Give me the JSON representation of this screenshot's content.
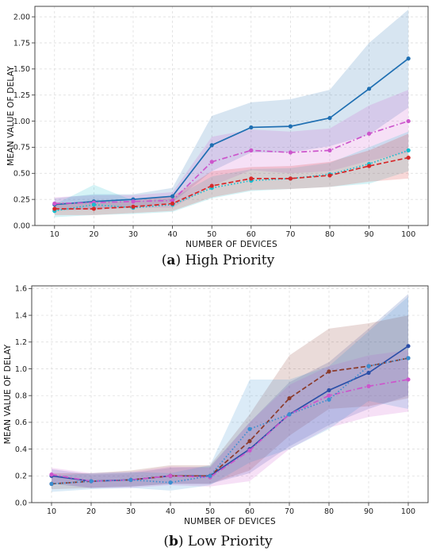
{
  "chart_data": [
    {
      "type": "line",
      "caption_letter": "a",
      "caption_text": "High Priority",
      "xlabel": "NUMBER OF DEVICES",
      "ylabel": "MEAN VALUE OF DELAY",
      "x": [
        10,
        20,
        30,
        40,
        50,
        60,
        70,
        80,
        90,
        100
      ],
      "xlim": [
        5,
        105
      ],
      "ylim": [
        0,
        2.1
      ],
      "yticks": [
        0.0,
        0.25,
        0.5,
        0.75,
        1.0,
        1.25,
        1.5,
        1.75,
        2.0
      ],
      "ytick_labels": [
        "0.00",
        "0.25",
        "0.50",
        "0.75",
        "1.00",
        "1.25",
        "1.50",
        "1.75",
        "2.00"
      ],
      "grid": true,
      "series": [
        {
          "color": "#1f6fb2",
          "dash": "solid",
          "marker": "circle",
          "values": [
            0.2,
            0.23,
            0.25,
            0.28,
            0.77,
            0.94,
            0.95,
            1.03,
            1.31,
            1.6
          ],
          "upper": [
            0.26,
            0.3,
            0.3,
            0.36,
            1.05,
            1.18,
            1.21,
            1.3,
            1.75,
            2.07
          ],
          "lower": [
            0.14,
            0.16,
            0.18,
            0.22,
            0.52,
            0.7,
            0.7,
            0.76,
            0.87,
            1.13
          ]
        },
        {
          "color": "#cc55cc",
          "dash": "dashdot",
          "marker": "circle",
          "values": [
            0.21,
            0.22,
            0.23,
            0.24,
            0.61,
            0.72,
            0.7,
            0.72,
            0.88,
            1.0
          ],
          "upper": [
            0.27,
            0.29,
            0.29,
            0.32,
            0.85,
            0.92,
            0.9,
            0.93,
            1.15,
            1.3
          ],
          "lower": [
            0.15,
            0.15,
            0.17,
            0.17,
            0.38,
            0.53,
            0.5,
            0.52,
            0.62,
            0.7
          ]
        },
        {
          "color": "#17becf",
          "dash": "dotted",
          "marker": "circle",
          "values": [
            0.14,
            0.2,
            0.17,
            0.2,
            0.36,
            0.43,
            0.45,
            0.49,
            0.59,
            0.72
          ],
          "upper": [
            0.2,
            0.39,
            0.24,
            0.26,
            0.47,
            0.54,
            0.55,
            0.6,
            0.75,
            0.9
          ],
          "lower": [
            0.08,
            0.1,
            0.11,
            0.13,
            0.26,
            0.33,
            0.35,
            0.37,
            0.4,
            0.52
          ]
        },
        {
          "color": "#d62728",
          "dash": "dashed",
          "marker": "circle",
          "values": [
            0.16,
            0.16,
            0.18,
            0.21,
            0.38,
            0.45,
            0.45,
            0.48,
            0.57,
            0.65
          ],
          "upper": [
            0.22,
            0.22,
            0.24,
            0.28,
            0.52,
            0.56,
            0.57,
            0.61,
            0.72,
            0.88
          ],
          "lower": [
            0.1,
            0.1,
            0.12,
            0.14,
            0.27,
            0.34,
            0.35,
            0.37,
            0.42,
            0.45
          ]
        }
      ]
    },
    {
      "type": "line",
      "caption_letter": "b",
      "caption_text": "Low Priority",
      "xlabel": "NUMBER OF DEVICES",
      "ylabel": "MEAN VALUE OF DELAY",
      "x": [
        10,
        20,
        30,
        40,
        50,
        60,
        70,
        80,
        90,
        100
      ],
      "xlim": [
        5,
        105
      ],
      "ylim": [
        0,
        1.62
      ],
      "yticks": [
        0.0,
        0.2,
        0.4,
        0.6,
        0.8,
        1.0,
        1.2,
        1.4,
        1.6
      ],
      "ytick_labels": [
        "0.0",
        "0.2",
        "0.4",
        "0.6",
        "0.8",
        "1.0",
        "1.2",
        "1.4",
        "1.6"
      ],
      "grid": true,
      "series": [
        {
          "color": "#2b4fa8",
          "dash": "solid",
          "marker": "circle",
          "values": [
            0.2,
            0.16,
            0.17,
            0.2,
            0.2,
            0.4,
            0.66,
            0.84,
            0.97,
            1.17
          ],
          "upper": [
            0.25,
            0.21,
            0.22,
            0.26,
            0.27,
            0.6,
            0.9,
            1.05,
            1.3,
            1.56
          ],
          "lower": [
            0.14,
            0.11,
            0.12,
            0.14,
            0.14,
            0.22,
            0.42,
            0.58,
            0.7,
            0.8
          ]
        },
        {
          "color": "#8b3a2a",
          "dash": "dashed",
          "marker": "circle",
          "values": [
            0.14,
            0.16,
            0.17,
            0.2,
            0.2,
            0.46,
            0.78,
            0.98,
            1.02,
            1.08
          ],
          "upper": [
            0.22,
            0.22,
            0.24,
            0.28,
            0.28,
            0.66,
            1.1,
            1.3,
            1.34,
            1.4
          ],
          "lower": [
            0.1,
            0.11,
            0.12,
            0.14,
            0.14,
            0.24,
            0.5,
            0.7,
            0.72,
            0.78
          ]
        },
        {
          "color": "#cc55cc",
          "dash": "dashdot",
          "marker": "circle",
          "values": [
            0.21,
            0.16,
            0.17,
            0.2,
            0.19,
            0.39,
            0.66,
            0.8,
            0.87,
            0.92
          ],
          "upper": [
            0.26,
            0.22,
            0.23,
            0.27,
            0.26,
            0.6,
            0.88,
            1.02,
            1.1,
            1.14
          ],
          "lower": [
            0.15,
            0.11,
            0.11,
            0.13,
            0.12,
            0.16,
            0.4,
            0.56,
            0.64,
            0.68
          ]
        },
        {
          "color": "#3a8ed0",
          "dash": "dotted",
          "marker": "circle",
          "values": [
            0.14,
            0.16,
            0.17,
            0.15,
            0.2,
            0.55,
            0.66,
            0.77,
            1.02,
            1.08
          ],
          "upper": [
            0.2,
            0.22,
            0.23,
            0.22,
            0.28,
            0.92,
            0.92,
            1.02,
            1.28,
            1.54
          ],
          "lower": [
            0.08,
            0.1,
            0.11,
            0.09,
            0.13,
            0.3,
            0.4,
            0.55,
            0.76,
            0.7
          ]
        }
      ]
    }
  ]
}
